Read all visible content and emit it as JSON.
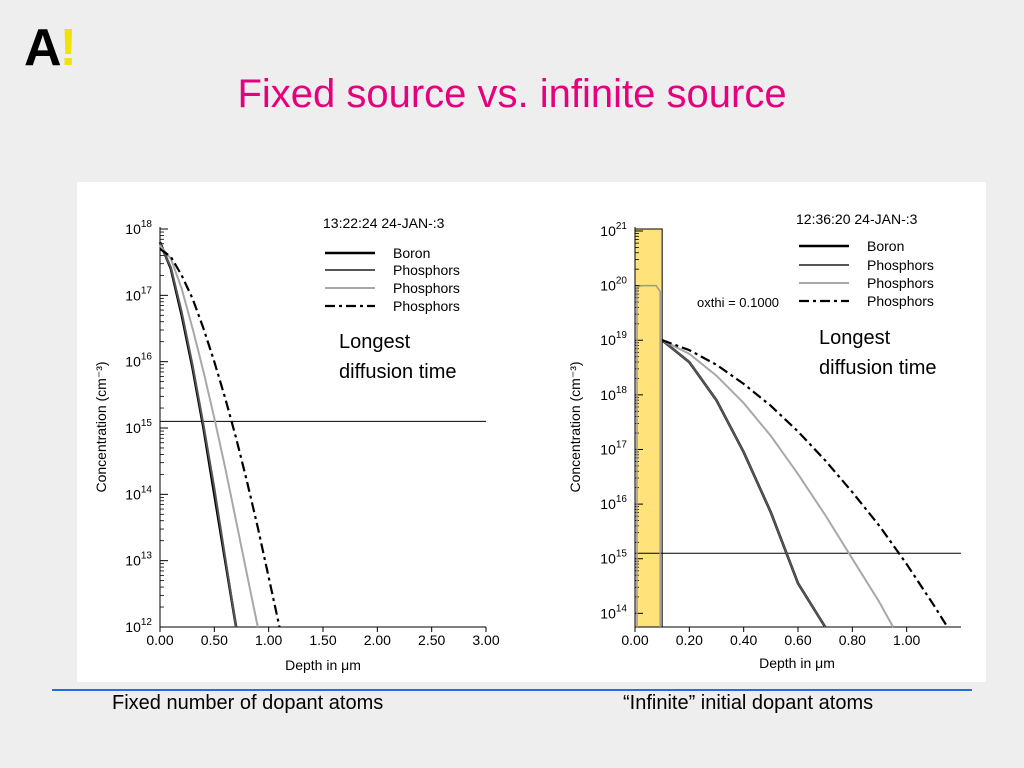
{
  "slide": {
    "logo_letter": "A",
    "logo_mark": "!",
    "title": "Fixed source vs. infinite source",
    "caption_left": "Fixed number of dopant atoms",
    "caption_right": "“Infinite” initial dopant atoms"
  },
  "colors": {
    "title": "#e6007e",
    "logo_mark": "#f2e20a",
    "rule": "#1e6fe0",
    "highlight": "#ffe27a"
  },
  "chart_data": [
    {
      "type": "line",
      "xlabel": "Depth in μm",
      "ylabel": "Concentration (cm⁻³)",
      "timestamp": "13:22:24 24-JAN-:3",
      "x_ticks": [
        "0.00",
        "0.50",
        "1.00",
        "1.50",
        "2.00",
        "2.50",
        "3.00"
      ],
      "y_ticks": [
        {
          "base": "10",
          "exp": "18"
        },
        {
          "base": "10",
          "exp": "17"
        },
        {
          "base": "10",
          "exp": "16"
        },
        {
          "base": "10",
          "exp": "15"
        },
        {
          "base": "10",
          "exp": "14"
        },
        {
          "base": "10",
          "exp": "13"
        },
        {
          "base": "10",
          "exp": "12"
        }
      ],
      "xlim": [
        0,
        3.0
      ],
      "ylim_log10": [
        12,
        18
      ],
      "legend": [
        "Boron",
        "Phosphors",
        "Phosphors",
        "Phosphors"
      ],
      "annotation_lines": [
        "Longest",
        "diffusion time"
      ],
      "reference_level_log10": 15.1,
      "series": [
        {
          "x": [
            0,
            0.1,
            0.2,
            0.3,
            0.4,
            0.5,
            0.6,
            0.7
          ],
          "y_log10": [
            17.8,
            17.4,
            16.7,
            15.9,
            15.0,
            14.0,
            13.0,
            11.9
          ]
        },
        {
          "x": [
            0,
            0.1,
            0.2,
            0.3,
            0.4,
            0.5,
            0.6,
            0.7
          ],
          "y_log10": [
            17.78,
            17.42,
            16.75,
            15.95,
            15.05,
            14.1,
            13.05,
            12.0
          ]
        },
        {
          "x": [
            0,
            0.1,
            0.2,
            0.3,
            0.4,
            0.5,
            0.6,
            0.7,
            0.8,
            0.9
          ],
          "y_log10": [
            17.75,
            17.55,
            17.1,
            16.5,
            15.85,
            15.15,
            14.4,
            13.6,
            12.8,
            12.0
          ]
        },
        {
          "x": [
            0,
            0.1,
            0.2,
            0.3,
            0.4,
            0.5,
            0.6,
            0.7,
            0.8,
            0.9,
            1.0,
            1.1
          ],
          "y_log10": [
            17.7,
            17.58,
            17.3,
            16.95,
            16.5,
            16.0,
            15.45,
            14.85,
            14.2,
            13.5,
            12.75,
            12.0
          ]
        }
      ]
    },
    {
      "type": "line",
      "xlabel": "Depth in μm",
      "ylabel": "Concentration (cm⁻³)",
      "timestamp": "12:36:20 24-JAN-:3",
      "param_label": "oxthi = 0.1000",
      "x_ticks": [
        "0.00",
        "0.20",
        "0.40",
        "0.60",
        "0.80",
        "1.00"
      ],
      "y_ticks": [
        {
          "base": "10",
          "exp": "21"
        },
        {
          "base": "10",
          "exp": "20"
        },
        {
          "base": "10",
          "exp": "19"
        },
        {
          "base": "10",
          "exp": "18"
        },
        {
          "base": "10",
          "exp": "17"
        },
        {
          "base": "10",
          "exp": "16"
        },
        {
          "base": "10",
          "exp": "15"
        },
        {
          "base": "10",
          "exp": "14"
        }
      ],
      "xlim": [
        0,
        1.2
      ],
      "ylim_log10": [
        13.75,
        21
      ],
      "legend": [
        "Boron",
        "Phosphors",
        "Phosphors",
        "Phosphors"
      ],
      "annotation_lines": [
        "Longest",
        "diffusion time"
      ],
      "reference_level_log10": 15.1,
      "oxide_region_x": [
        0,
        0.1
      ],
      "oxide_level_log10": 20.0,
      "series": [
        {
          "x": [
            0.1,
            0.2,
            0.3,
            0.4,
            0.5,
            0.6,
            0.7
          ],
          "y_log10": [
            19.0,
            18.6,
            17.9,
            16.95,
            15.85,
            14.55,
            13.6
          ]
        },
        {
          "x": [
            0.1,
            0.2,
            0.3,
            0.4,
            0.5,
            0.6,
            0.7
          ],
          "y_log10": [
            19.0,
            18.6,
            17.9,
            16.95,
            15.85,
            14.55,
            13.6
          ]
        },
        {
          "x": [
            0.1,
            0.2,
            0.3,
            0.4,
            0.5,
            0.6,
            0.7,
            0.8,
            0.9,
            0.95
          ],
          "y_log10": [
            19.0,
            18.75,
            18.35,
            17.85,
            17.25,
            16.55,
            15.8,
            15.0,
            14.2,
            13.75
          ]
        },
        {
          "x": [
            0.1,
            0.2,
            0.3,
            0.4,
            0.5,
            0.6,
            0.7,
            0.8,
            0.9,
            1.0,
            1.1,
            1.15
          ],
          "y_log10": [
            19.0,
            18.82,
            18.55,
            18.2,
            17.8,
            17.33,
            16.8,
            16.22,
            15.6,
            14.9,
            14.15,
            13.75
          ]
        }
      ]
    }
  ]
}
